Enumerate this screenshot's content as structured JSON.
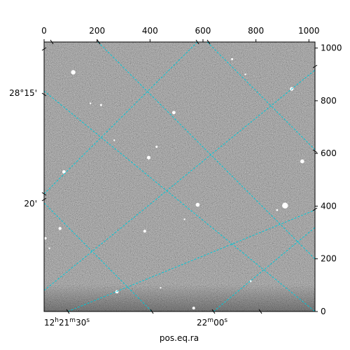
{
  "chart_data": {
    "type": "image",
    "description_kind": "astronomical-image-with-wcs-grid",
    "grid": true,
    "grid_color": "#00c8d8",
    "image_colormap": "gray",
    "pixel_axes": {
      "x_range": [
        0,
        1023
      ],
      "y_range": [
        0,
        1023
      ],
      "x_ticks": [
        0,
        200,
        400,
        600,
        800,
        1000
      ],
      "y_ticks": [
        0,
        200,
        400,
        600,
        800,
        1000
      ]
    },
    "x_ticks_top": [
      "0",
      "200",
      "400",
      "600",
      "800",
      "1000"
    ],
    "y_ticks_right": [
      "0",
      "200",
      "400",
      "600",
      "800",
      "1000"
    ],
    "ra_ticks": {
      "labels": [
        {
          "h": "12",
          "hs": "h",
          "m": "21",
          "ms": "m",
          "s": "30",
          "ss": "s"
        },
        {
          "m": "22",
          "ms": "m",
          "s": "00",
          "ss": "s"
        }
      ]
    },
    "dec_ticks": {
      "labels": [
        "28°15'",
        "20'"
      ]
    },
    "xlabel": "pos.eq.ra",
    "ylabel": "",
    "stars": [
      {
        "x": 110,
        "y": 908,
        "r": 3.2
      },
      {
        "x": 215,
        "y": 784,
        "r": 1.5
      },
      {
        "x": 490,
        "y": 755,
        "r": 2.4
      },
      {
        "x": 710,
        "y": 958,
        "r": 1.5
      },
      {
        "x": 935,
        "y": 845,
        "r": 2.6
      },
      {
        "x": 395,
        "y": 584,
        "r": 2.6
      },
      {
        "x": 425,
        "y": 625,
        "r": 1.5
      },
      {
        "x": 975,
        "y": 570,
        "r": 2.8
      },
      {
        "x": 75,
        "y": 530,
        "r": 2.4
      },
      {
        "x": 580,
        "y": 405,
        "r": 2.8
      },
      {
        "x": 910,
        "y": 402,
        "r": 4.2
      },
      {
        "x": 880,
        "y": 385,
        "r": 1.4
      },
      {
        "x": 60,
        "y": 315,
        "r": 2.2
      },
      {
        "x": 380,
        "y": 305,
        "r": 2.0
      },
      {
        "x": 5,
        "y": 278,
        "r": 1.8
      },
      {
        "x": 275,
        "y": 75,
        "r": 2.4
      },
      {
        "x": 565,
        "y": 13,
        "r": 2.0
      },
      {
        "x": 780,
        "y": 115,
        "r": 1.3
      },
      {
        "x": 265,
        "y": 650,
        "r": 1.2
      },
      {
        "x": 175,
        "y": 790,
        "r": 1.2
      },
      {
        "x": 760,
        "y": 900,
        "r": 1.2
      },
      {
        "x": 530,
        "y": 350,
        "r": 1.2
      },
      {
        "x": 20,
        "y": 240,
        "r": 1.2
      },
      {
        "x": 440,
        "y": 90,
        "r": 1.1
      }
    ]
  }
}
